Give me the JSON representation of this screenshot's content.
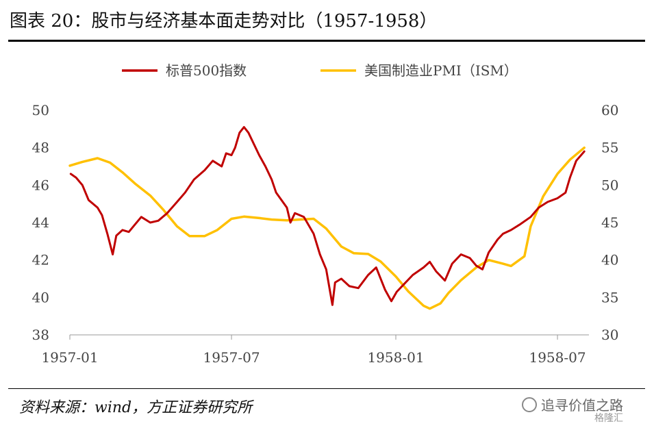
{
  "header": {
    "title": "图表 20：股市与经济基本面走势对比（1957-1958）"
  },
  "footer": {
    "source": "资料来源：wind，方正证券研究所"
  },
  "watermark": {
    "text": "追寻价值之路",
    "logo": "格隆汇"
  },
  "chart_data": {
    "type": "line",
    "title": "",
    "x_ticks": [
      "1957-01",
      "1957-07",
      "1958-01",
      "1958-07"
    ],
    "y_left": {
      "ticks": [
        38,
        40,
        42,
        44,
        46,
        48,
        50
      ],
      "range": [
        38,
        50
      ]
    },
    "y_right": {
      "ticks": [
        30,
        35,
        40,
        45,
        50,
        55,
        60
      ],
      "range": [
        30,
        60
      ]
    },
    "legend_position": "top",
    "grid": false,
    "series": [
      {
        "name": "标普500指数",
        "axis": "left",
        "color": "#C00000",
        "points": [
          [
            "1957-01-02",
            46.6
          ],
          [
            "1957-01-08",
            46.4
          ],
          [
            "1957-01-15",
            46.0
          ],
          [
            "1957-01-22",
            45.2
          ],
          [
            "1957-02-01",
            44.8
          ],
          [
            "1957-02-06",
            44.4
          ],
          [
            "1957-02-12",
            43.4
          ],
          [
            "1957-02-18",
            42.3
          ],
          [
            "1957-02-22",
            43.3
          ],
          [
            "1957-03-01",
            43.6
          ],
          [
            "1957-03-08",
            43.5
          ],
          [
            "1957-03-15",
            43.9
          ],
          [
            "1957-03-22",
            44.3
          ],
          [
            "1957-04-01",
            44.0
          ],
          [
            "1957-04-10",
            44.1
          ],
          [
            "1957-04-20",
            44.5
          ],
          [
            "1957-05-01",
            45.1
          ],
          [
            "1957-05-10",
            45.6
          ],
          [
            "1957-05-20",
            46.3
          ],
          [
            "1957-06-01",
            46.8
          ],
          [
            "1957-06-10",
            47.3
          ],
          [
            "1957-06-20",
            47.0
          ],
          [
            "1957-06-25",
            47.7
          ],
          [
            "1957-07-01",
            47.6
          ],
          [
            "1957-07-05",
            48.0
          ],
          [
            "1957-07-10",
            48.8
          ],
          [
            "1957-07-15",
            49.1
          ],
          [
            "1957-07-20",
            48.8
          ],
          [
            "1957-08-01",
            47.6
          ],
          [
            "1957-08-08",
            47.0
          ],
          [
            "1957-08-15",
            46.3
          ],
          [
            "1957-08-20",
            45.6
          ],
          [
            "1957-09-01",
            44.8
          ],
          [
            "1957-09-05",
            44.0
          ],
          [
            "1957-09-10",
            44.5
          ],
          [
            "1957-09-20",
            44.3
          ],
          [
            "1957-10-01",
            43.4
          ],
          [
            "1957-10-08",
            42.3
          ],
          [
            "1957-10-15",
            41.5
          ],
          [
            "1957-10-22",
            39.6
          ],
          [
            "1957-10-25",
            40.8
          ],
          [
            "1957-11-01",
            41.0
          ],
          [
            "1957-11-10",
            40.6
          ],
          [
            "1957-11-20",
            40.5
          ],
          [
            "1957-12-01",
            41.2
          ],
          [
            "1957-12-10",
            41.6
          ],
          [
            "1957-12-20",
            40.4
          ],
          [
            "1957-12-27",
            39.8
          ],
          [
            "1958-01-02",
            40.3
          ],
          [
            "1958-01-10",
            40.7
          ],
          [
            "1958-01-20",
            41.2
          ],
          [
            "1958-02-01",
            41.6
          ],
          [
            "1958-02-08",
            41.9
          ],
          [
            "1958-02-15",
            41.4
          ],
          [
            "1958-02-25",
            40.9
          ],
          [
            "1958-03-05",
            41.8
          ],
          [
            "1958-03-15",
            42.3
          ],
          [
            "1958-03-25",
            42.1
          ],
          [
            "1958-04-01",
            41.7
          ],
          [
            "1958-04-08",
            41.5
          ],
          [
            "1958-04-15",
            42.4
          ],
          [
            "1958-04-25",
            43.1
          ],
          [
            "1958-05-01",
            43.4
          ],
          [
            "1958-05-10",
            43.6
          ],
          [
            "1958-05-20",
            43.9
          ],
          [
            "1958-06-01",
            44.3
          ],
          [
            "1958-06-10",
            44.8
          ],
          [
            "1958-06-20",
            45.1
          ],
          [
            "1958-07-01",
            45.3
          ],
          [
            "1958-07-10",
            45.6
          ],
          [
            "1958-07-15",
            46.4
          ],
          [
            "1958-07-22",
            47.3
          ],
          [
            "1958-07-31",
            47.8
          ]
        ]
      },
      {
        "name": "美国制造业PMI（ISM）",
        "axis": "right",
        "color": "#FFC000",
        "points": [
          [
            "1957-01-01",
            52.6
          ],
          [
            "1957-01-15",
            53.1
          ],
          [
            "1957-02-01",
            53.6
          ],
          [
            "1957-02-15",
            53.0
          ],
          [
            "1957-03-01",
            51.7
          ],
          [
            "1957-03-15",
            50.2
          ],
          [
            "1957-04-01",
            48.6
          ],
          [
            "1957-04-15",
            46.8
          ],
          [
            "1957-05-01",
            44.5
          ],
          [
            "1957-05-15",
            43.2
          ],
          [
            "1957-06-01",
            43.2
          ],
          [
            "1957-06-15",
            44.0
          ],
          [
            "1957-07-01",
            45.5
          ],
          [
            "1957-07-15",
            45.8
          ],
          [
            "1957-08-01",
            45.6
          ],
          [
            "1957-08-15",
            45.4
          ],
          [
            "1957-09-01",
            45.3
          ],
          [
            "1957-09-15",
            45.4
          ],
          [
            "1957-10-01",
            45.5
          ],
          [
            "1957-10-15",
            44.2
          ],
          [
            "1957-11-01",
            41.8
          ],
          [
            "1957-11-15",
            40.9
          ],
          [
            "1957-12-01",
            40.8
          ],
          [
            "1957-12-15",
            39.8
          ],
          [
            "1958-01-01",
            37.8
          ],
          [
            "1958-01-15",
            35.8
          ],
          [
            "1958-02-01",
            33.9
          ],
          [
            "1958-02-08",
            33.5
          ],
          [
            "1958-02-20",
            34.2
          ],
          [
            "1958-03-01",
            35.6
          ],
          [
            "1958-03-15",
            37.3
          ],
          [
            "1958-04-01",
            39.0
          ],
          [
            "1958-04-15",
            40.0
          ],
          [
            "1958-05-01",
            39.5
          ],
          [
            "1958-05-10",
            39.2
          ],
          [
            "1958-05-25",
            40.5
          ],
          [
            "1958-06-01",
            44.5
          ],
          [
            "1958-06-15",
            48.5
          ],
          [
            "1958-07-01",
            51.5
          ],
          [
            "1958-07-15",
            53.4
          ],
          [
            "1958-07-31",
            55.0
          ]
        ]
      }
    ]
  }
}
